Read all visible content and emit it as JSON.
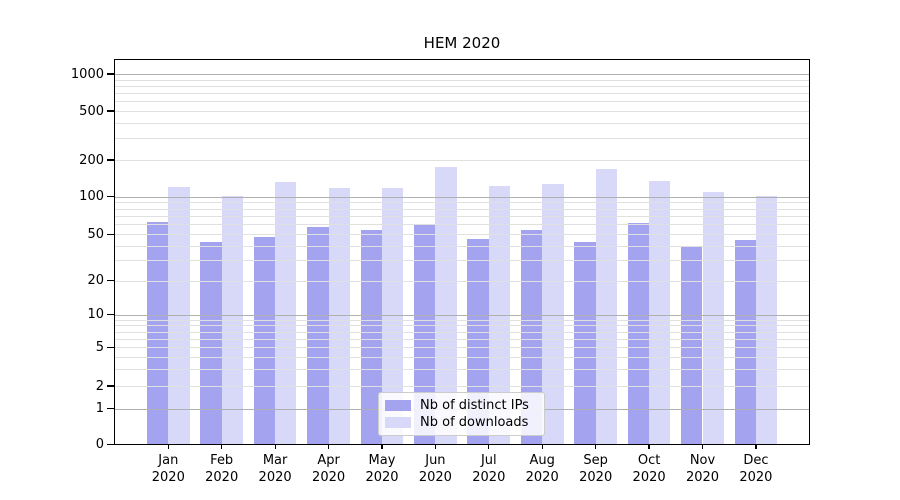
{
  "chart_data": {
    "type": "bar",
    "title": "HEM 2020",
    "months": [
      "Jan",
      "Feb",
      "Mar",
      "Apr",
      "May",
      "Jun",
      "Jul",
      "Aug",
      "Sep",
      "Oct",
      "Nov",
      "Dec"
    ],
    "year": "2020",
    "series": [
      {
        "name": "Nb of distinct IPs",
        "color": "#a3a3f0",
        "values": [
          63,
          43,
          47,
          57,
          54,
          60,
          46,
          54,
          43,
          62,
          40,
          45
        ]
      },
      {
        "name": "Nb of downloads",
        "color": "#d8d8f8",
        "values": [
          120,
          102,
          133,
          118,
          118,
          176,
          122,
          127,
          169,
          135,
          110,
          101
        ]
      }
    ],
    "xlabel": "",
    "ylabel": "",
    "y_ticks": [
      0,
      1,
      2,
      5,
      10,
      20,
      50,
      100,
      200,
      500,
      1000
    ],
    "y_scale": "symlog",
    "ylim": [
      0,
      1300
    ],
    "grid": true,
    "grid_major_color": "#b0b0b0",
    "grid_minor_color": "#e0e0e0",
    "legend_position": "lower center",
    "legend_entries": [
      "Nb of distinct IPs",
      "Nb of downloads"
    ]
  }
}
